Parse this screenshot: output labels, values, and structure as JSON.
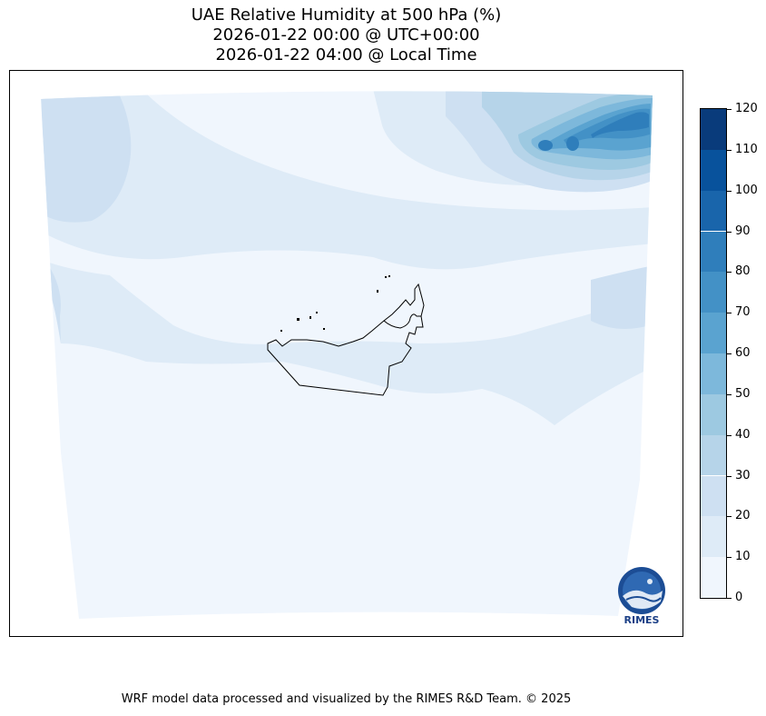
{
  "title": {
    "line1": "UAE Relative Humidity at 500 hPa (%)",
    "line2": "2026-01-22 00:00 @ UTC+00:00",
    "line3": "2026-01-22 04:00 @ Local Time"
  },
  "colorbar": {
    "ticks": [
      "0",
      "10",
      "20",
      "30",
      "40",
      "50",
      "60",
      "70",
      "80",
      "90",
      "100",
      "110",
      "120"
    ],
    "colors": [
      "#f0f6fd",
      "#deebf7",
      "#cee0f2",
      "#b6d4e9",
      "#9dc9e1",
      "#7db8db",
      "#5aa3d0",
      "#4391c6",
      "#2f7ebb",
      "#1965ab",
      "#08529c",
      "#093b7b"
    ]
  },
  "footer": "WRF model data processed and visualized by the RIMES R&D Team. © 2025",
  "logo": {
    "text": "RIMES",
    "icon": "rimes-logo-icon"
  }
}
